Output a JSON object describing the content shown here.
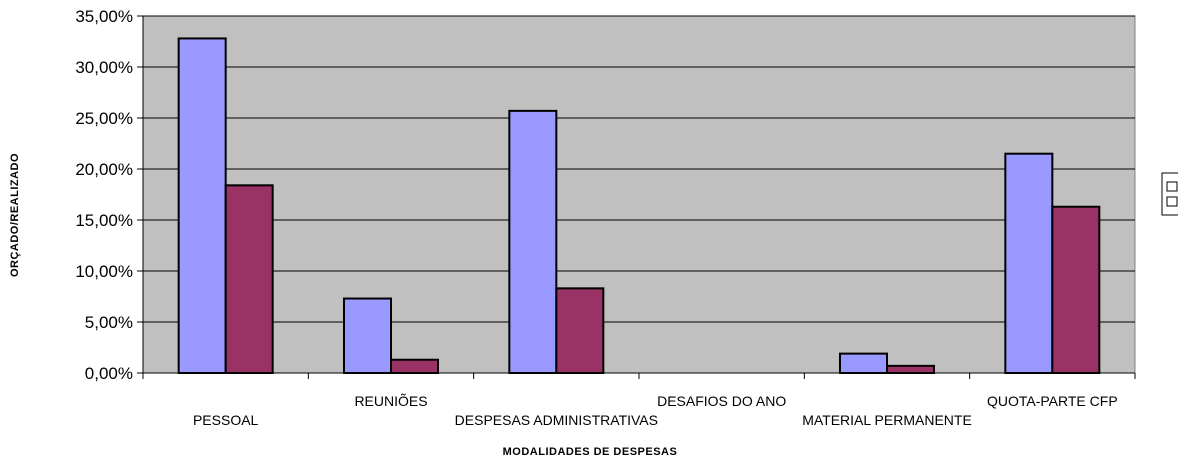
{
  "chart_data": {
    "type": "bar",
    "xlabel": "MODALIDADES DE DESPESAS",
    "ylabel": "ORÇADO/REALIZADO",
    "categories": [
      "PESSOAL",
      "REUNIÕES",
      "DESPESAS ADMINISTRATIVAS",
      "DESAFIOS DO ANO",
      "MATERIAL PERMANENTE",
      "QUOTA-PARTE CFP"
    ],
    "series": [
      {
        "color": "#9999ff",
        "values": [
          32.8,
          7.3,
          25.7,
          0,
          1.9,
          21.5
        ]
      },
      {
        "color": "#993366",
        "values": [
          18.4,
          1.3,
          8.3,
          0,
          0.7,
          16.3
        ]
      }
    ],
    "ylim": [
      0,
      35
    ],
    "yticks": [
      "0,00%",
      "5,00%",
      "10,00%",
      "15,00%",
      "20,00%",
      "25,00%",
      "30,00%",
      "35,00%"
    ],
    "grid": true,
    "plot_background": "#c0c0c0",
    "legend_placement": "right"
  }
}
